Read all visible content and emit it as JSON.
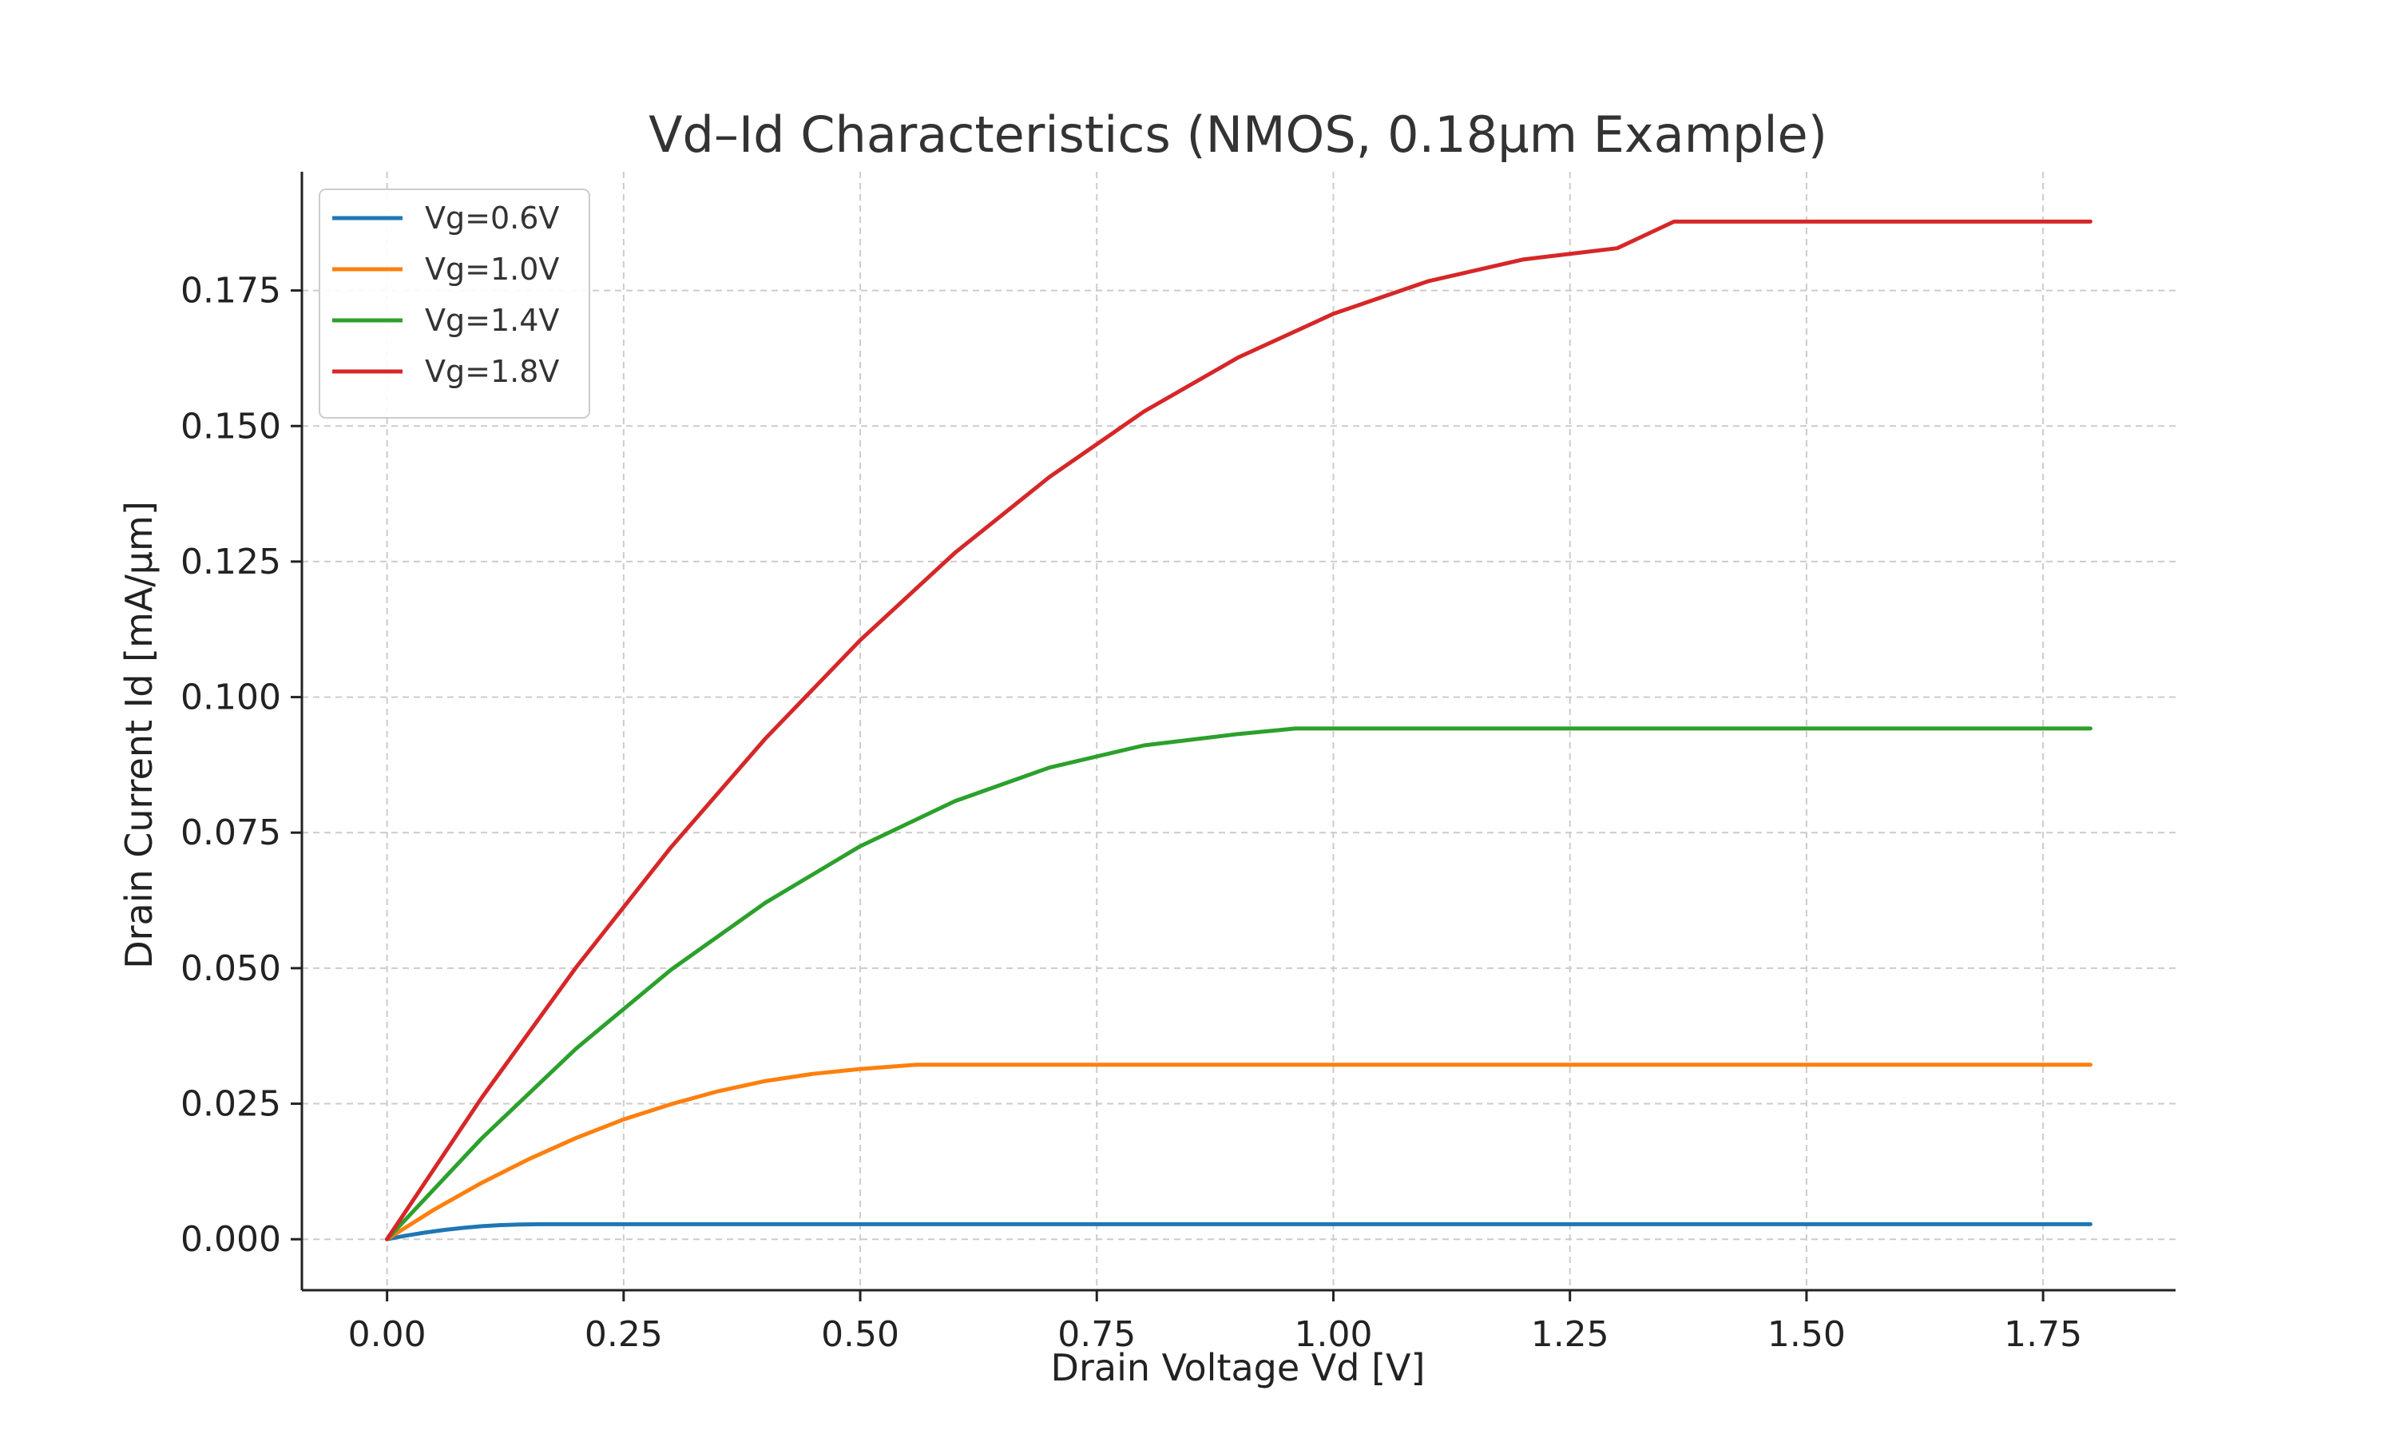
{
  "chart_data": {
    "type": "line",
    "title": "Vd–Id Characteristics (NMOS, 0.18μm Example)",
    "xlabel": "Drain Voltage Vd [V]",
    "ylabel": "Drain Current Id [mA/μm]",
    "xlim": [
      -0.09,
      1.89
    ],
    "ylim": [
      -0.0094,
      0.1969
    ],
    "xticks": [
      0.0,
      0.25,
      0.5,
      0.75,
      1.0,
      1.25,
      1.5,
      1.75
    ],
    "xtick_labels": [
      "0.00",
      "0.25",
      "0.50",
      "0.75",
      "1.00",
      "1.25",
      "1.50",
      "1.75"
    ],
    "yticks": [
      0.0,
      0.025,
      0.05,
      0.075,
      0.1,
      0.125,
      0.15,
      0.175
    ],
    "ytick_labels": [
      "0.000",
      "0.025",
      "0.050",
      "0.075",
      "0.100",
      "0.125",
      "0.150",
      "0.175"
    ],
    "grid": true,
    "legend_position": "top-left",
    "series": [
      {
        "name": "Vg=0.6V",
        "color": "#1f77b4",
        "x": [
          0.0,
          0.02,
          0.04,
          0.06,
          0.08,
          0.1,
          0.12,
          0.14,
          0.16,
          0.18,
          0.3,
          0.5,
          0.75,
          1.0,
          1.25,
          1.5,
          1.8
        ],
        "y": [
          0.0,
          0.00066,
          0.00123,
          0.00171,
          0.0021,
          0.0024,
          0.00261,
          0.00273,
          0.00277,
          0.00277,
          0.00277,
          0.00277,
          0.00277,
          0.00277,
          0.00277,
          0.00277,
          0.00277
        ]
      },
      {
        "name": "Vg=1.0V",
        "color": "#ff7f0e",
        "x": [
          0.0,
          0.05,
          0.1,
          0.15,
          0.2,
          0.25,
          0.3,
          0.35,
          0.4,
          0.45,
          0.5,
          0.56,
          0.75,
          1.0,
          1.25,
          1.5,
          1.8
        ],
        "y": [
          0.0,
          0.0055,
          0.0104,
          0.0148,
          0.0187,
          0.0221,
          0.0249,
          0.0273,
          0.0292,
          0.0305,
          0.0314,
          0.0322,
          0.0322,
          0.0322,
          0.0322,
          0.0322,
          0.0322
        ]
      },
      {
        "name": "Vg=1.4V",
        "color": "#2ca02c",
        "x": [
          0.0,
          0.1,
          0.2,
          0.3,
          0.4,
          0.5,
          0.6,
          0.7,
          0.8,
          0.9,
          0.96,
          1.1,
          1.3,
          1.5,
          1.8
        ],
        "y": [
          0.0,
          0.0186,
          0.0352,
          0.0497,
          0.0621,
          0.0725,
          0.0808,
          0.087,
          0.0911,
          0.0932,
          0.0942,
          0.0942,
          0.0942,
          0.0942,
          0.0942
        ]
      },
      {
        "name": "Vg=1.8V",
        "color": "#d62728",
        "x": [
          0.0,
          0.1,
          0.2,
          0.3,
          0.4,
          0.5,
          0.6,
          0.7,
          0.8,
          0.9,
          1.0,
          1.1,
          1.2,
          1.3,
          1.36,
          1.5,
          1.65,
          1.8
        ],
        "y": [
          0.0,
          0.0261,
          0.0502,
          0.0723,
          0.0924,
          0.1105,
          0.1266,
          0.1406,
          0.1527,
          0.1627,
          0.1707,
          0.1767,
          0.1807,
          0.1828,
          0.1877,
          0.1877,
          0.1877,
          0.1877
        ]
      }
    ]
  }
}
